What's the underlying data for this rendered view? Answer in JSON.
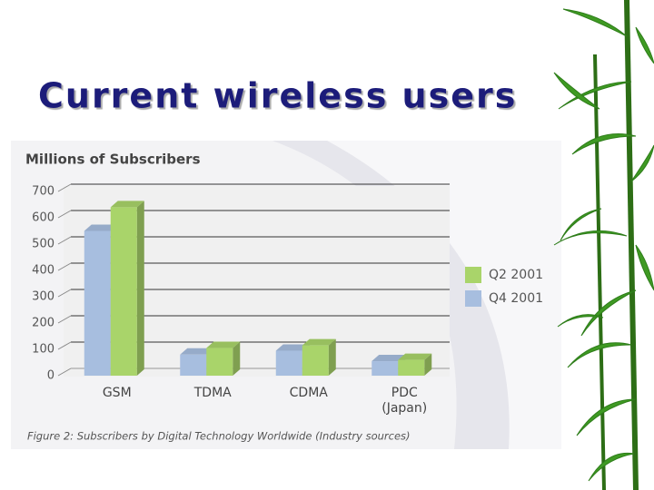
{
  "slide_title": "Current wireless users",
  "chart_data": {
    "type": "bar",
    "title": "Millions of Subscribers",
    "caption": "Figure 2: Subscribers by Digital Technology Worldwide (Industry sources)",
    "categories": [
      "GSM",
      "TDMA",
      "CDMA",
      "PDC (Japan)"
    ],
    "series": [
      {
        "name": "Q2 2001",
        "color": "#a9d46a",
        "values": [
          640,
          105,
          115,
          60
        ]
      },
      {
        "name": "Q4 2001",
        "color": "#a7bedf",
        "values": [
          550,
          80,
          95,
          55
        ]
      }
    ],
    "ylim": [
      0,
      700
    ],
    "yticks": [
      0,
      100,
      200,
      300,
      400,
      500,
      600,
      700
    ],
    "grid": true,
    "legend": "right"
  }
}
